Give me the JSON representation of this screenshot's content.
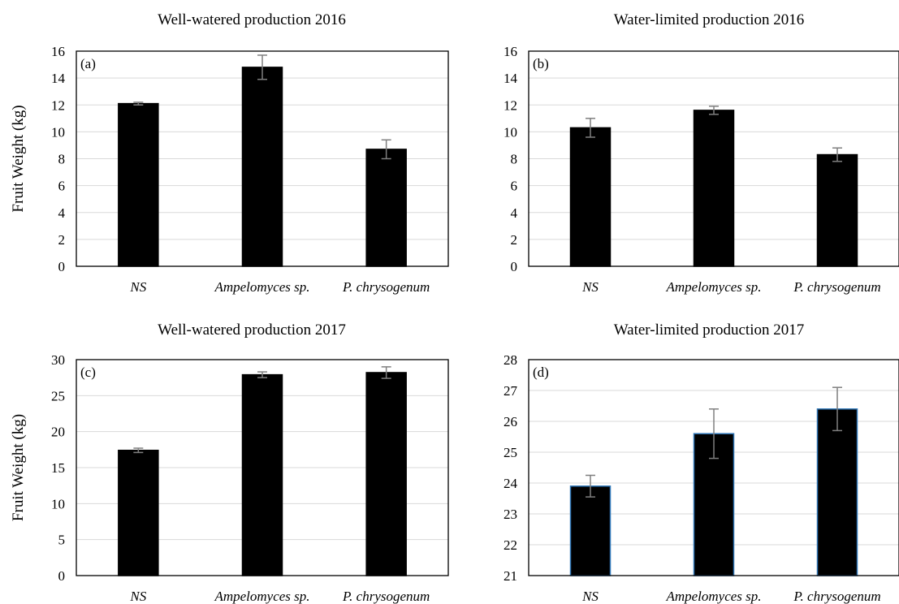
{
  "chart_data": [
    {
      "type": "bar",
      "panel_label": "(a)",
      "title": "Well-watered production 2016",
      "ylabel": "Fruit Weight (kg)",
      "categories": [
        "NS",
        "Ampelomyces sp.",
        "P. chrysogenum"
      ],
      "values": [
        12.1,
        14.8,
        8.7
      ],
      "errors": [
        0.1,
        0.9,
        0.7
      ],
      "ylim": [
        0,
        16
      ],
      "yticks": [
        0,
        2,
        4,
        6,
        8,
        10,
        12,
        14,
        16
      ],
      "grid": true,
      "bar_color": "#000000",
      "bar_edge_color": "#000000"
    },
    {
      "type": "bar",
      "panel_label": "(b)",
      "title": "Water-limited production 2016",
      "ylabel": "",
      "categories": [
        "NS",
        "Ampelomyces sp.",
        "P. chrysogenum"
      ],
      "values": [
        10.3,
        11.6,
        8.3
      ],
      "errors": [
        0.7,
        0.3,
        0.5
      ],
      "ylim": [
        0,
        16
      ],
      "yticks": [
        0,
        2,
        4,
        6,
        8,
        10,
        12,
        14,
        16
      ],
      "grid": true,
      "bar_color": "#000000",
      "bar_edge_color": "#000000"
    },
    {
      "type": "bar",
      "panel_label": "(c)",
      "title": "Well-watered production 2017",
      "ylabel": "Fruit Weight (kg)",
      "categories": [
        "NS",
        "Ampelomyces sp.",
        "P. chrysogenum"
      ],
      "values": [
        17.4,
        27.9,
        28.2
      ],
      "errors": [
        0.3,
        0.4,
        0.8
      ],
      "ylim": [
        0,
        30
      ],
      "yticks": [
        0,
        5,
        10,
        15,
        20,
        25,
        30
      ],
      "grid": true,
      "bar_color": "#000000",
      "bar_edge_color": "#000000"
    },
    {
      "type": "bar",
      "panel_label": "(d)",
      "title": "Water-limited production 2017",
      "ylabel": "",
      "categories": [
        "NS",
        "Ampelomyces sp.",
        "P. chrysogenum"
      ],
      "values": [
        23.9,
        25.6,
        26.4
      ],
      "errors": [
        0.35,
        0.8,
        0.7
      ],
      "ylim": [
        21,
        28
      ],
      "yticks": [
        21,
        22,
        23,
        24,
        25,
        26,
        27,
        28
      ],
      "grid": true,
      "bar_color": "#000000",
      "bar_edge_color": "#2e75b6"
    }
  ]
}
